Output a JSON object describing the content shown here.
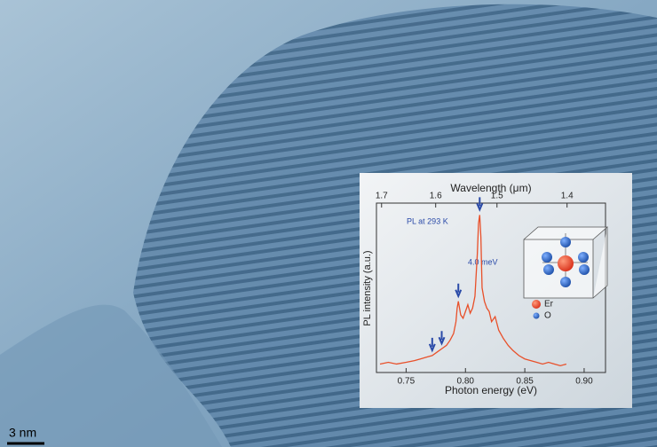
{
  "chart_data": {
    "type": "line",
    "x_label": "Photon energy (eV)",
    "y_label": "PL intensity (a.u.)",
    "x2_label": "Wavelength (μm)",
    "annotations": [
      "PL at 293 K",
      "4.0 meV"
    ],
    "legend": [
      "Er",
      "O"
    ],
    "x": [
      0.728,
      0.735,
      0.742,
      0.75,
      0.757,
      0.762,
      0.767,
      0.772,
      0.776,
      0.78,
      0.784,
      0.787,
      0.79,
      0.792,
      0.793,
      0.794,
      0.796,
      0.798,
      0.8,
      0.802,
      0.804,
      0.806,
      0.808,
      0.81,
      0.811,
      0.812,
      0.813,
      0.814,
      0.816,
      0.818,
      0.82,
      0.822,
      0.825,
      0.828,
      0.832,
      0.836,
      0.84,
      0.845,
      0.85,
      0.855,
      0.86,
      0.865,
      0.87,
      0.875,
      0.88,
      0.885
    ],
    "series": [
      {
        "color": "#e8502a",
        "values": [
          5,
          6,
          5,
          6,
          7,
          8,
          9,
          10,
          12,
          14,
          16,
          19,
          23,
          30,
          38,
          42,
          34,
          32,
          36,
          40,
          35,
          38,
          45,
          70,
          88,
          93,
          80,
          50,
          42,
          38,
          36,
          30,
          33,
          25,
          20,
          16,
          13,
          10,
          8,
          7,
          6,
          5,
          6,
          5,
          4,
          5
        ]
      }
    ],
    "arrows_x": [
      0.772,
      0.78,
      0.794,
      0.812
    ],
    "xlim": [
      0.725,
      0.918
    ],
    "xticks": [
      {
        "value": 0.75,
        "label": "0.75"
      },
      {
        "value": 0.8,
        "label": "0.80"
      },
      {
        "value": 0.85,
        "label": "0.85"
      },
      {
        "value": 0.9,
        "label": "0.90"
      }
    ],
    "x2ticks": [
      1.7,
      1.6,
      1.5,
      1.4
    ],
    "ylim": [
      0,
      100
    ]
  },
  "scale_bar": {
    "label": "3 nm"
  }
}
